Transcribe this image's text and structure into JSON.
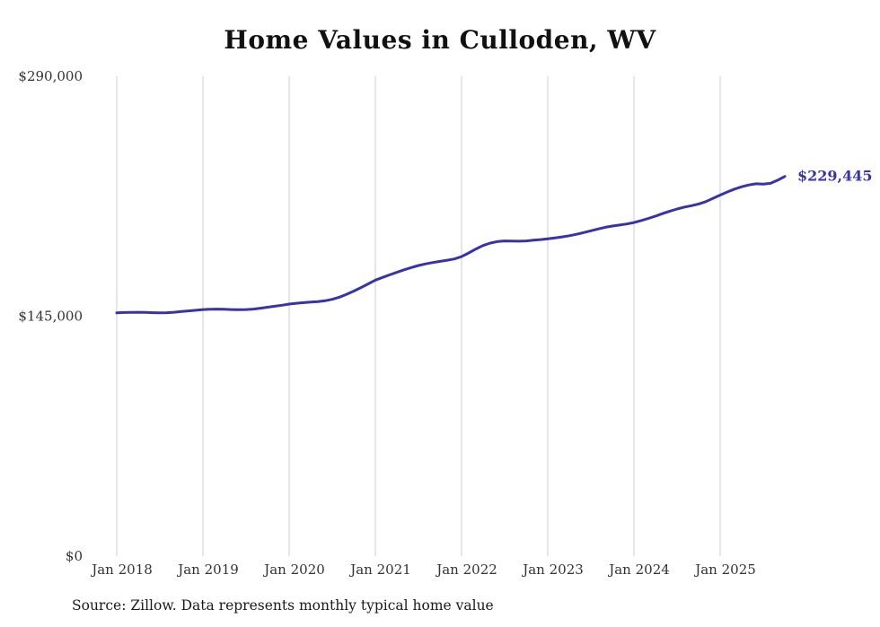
{
  "title": "Home Values in Culloden, WV",
  "source": "Source: Zillow. Data represents monthly typical home value",
  "chart_data": {
    "type": "line",
    "title": "Home Values in Culloden, WV",
    "series_name": "Monthly typical home value",
    "x_start": "Jan 2018",
    "x_end": "Oct 2025",
    "x_tick_labels": [
      "Jan 2018",
      "Jan 2019",
      "Jan 2020",
      "Jan 2021",
      "Jan 2022",
      "Jan 2023",
      "Jan 2024",
      "Jan 2025"
    ],
    "y_ticks": [
      {
        "value": 0,
        "label": "$0"
      },
      {
        "value": 145000,
        "label": "$145,000"
      },
      {
        "value": 290000,
        "label": "$290,000"
      }
    ],
    "ylim": [
      0,
      290000
    ],
    "grid": "vertical-only",
    "legend": "none",
    "end_label": "$229,445",
    "end_value": 229445,
    "line_color": "#3634a8",
    "grid_color": "#cccccc",
    "values": [
      147000,
      147200,
      147300,
      147400,
      147300,
      147100,
      147000,
      147100,
      147400,
      147800,
      148200,
      148600,
      149000,
      149200,
      149300,
      149200,
      149000,
      148900,
      149000,
      149300,
      149800,
      150400,
      151000,
      151600,
      152300,
      152800,
      153200,
      153500,
      153800,
      154300,
      155200,
      156500,
      158200,
      160200,
      162300,
      164500,
      166800,
      168400,
      170000,
      171500,
      173000,
      174400,
      175600,
      176600,
      177400,
      178100,
      178800,
      179600,
      181000,
      183200,
      185600,
      187700,
      189200,
      190100,
      190500,
      190400,
      190300,
      190500,
      190900,
      191300,
      191800,
      192300,
      192900,
      193600,
      194500,
      195500,
      196600,
      197700,
      198700,
      199500,
      200100,
      200700,
      201600,
      202800,
      204100,
      205500,
      207000,
      208500,
      209800,
      210900,
      211800,
      212800,
      214200,
      216200,
      218200,
      220100,
      221800,
      223200,
      224300,
      225000,
      224800,
      225300,
      227200,
      229445
    ]
  }
}
